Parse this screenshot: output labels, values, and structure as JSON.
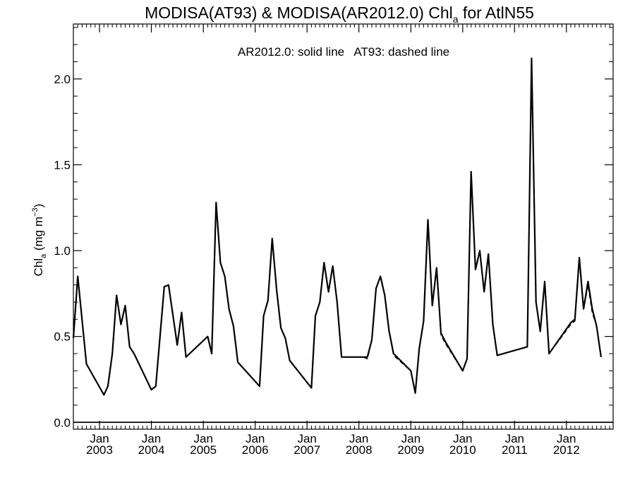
{
  "chart_data": {
    "type": "line",
    "title_main": "MODISA(AT93) & MODISA(AR2012.0)  Chl",
    "title_sub": "a",
    "title_tail": " for AtlN55",
    "ylabel_main": "Chl",
    "ylabel_sub": "a",
    "ylabel_unit": " (mg m",
    "ylabel_sup": "−3",
    "ylabel_close": ")",
    "annotation": "AR2012.0: solid line   AT93: dashed line",
    "ylim": [
      -0.04,
      2.32
    ],
    "xlim": [
      "2002-07-01",
      "2012-11-25"
    ],
    "yticks": [
      {
        "value": 0.0,
        "label": "0.0"
      },
      {
        "value": 0.5,
        "label": "0.5"
      },
      {
        "value": 1.0,
        "label": "1.0"
      },
      {
        "value": 1.5,
        "label": "1.5"
      },
      {
        "value": 2.0,
        "label": "2.0"
      }
    ],
    "xticks": [
      {
        "date": "2003-01-01",
        "month": "Jan",
        "year": "2003"
      },
      {
        "date": "2004-01-01",
        "month": "Jan",
        "year": "2004"
      },
      {
        "date": "2005-01-01",
        "month": "Jan",
        "year": "2005"
      },
      {
        "date": "2006-01-01",
        "month": "Jan",
        "year": "2006"
      },
      {
        "date": "2007-01-01",
        "month": "Jan",
        "year": "2007"
      },
      {
        "date": "2008-01-01",
        "month": "Jan",
        "year": "2008"
      },
      {
        "date": "2009-01-01",
        "month": "Jan",
        "year": "2009"
      },
      {
        "date": "2010-01-01",
        "month": "Jan",
        "year": "2010"
      },
      {
        "date": "2011-01-01",
        "month": "Jan",
        "year": "2011"
      },
      {
        "date": "2012-01-01",
        "month": "Jan",
        "year": "2012"
      }
    ],
    "grid": false,
    "zero_line": true,
    "series": [
      {
        "style": "solid",
        "x": [
          "2002-07-01",
          "2002-08-01",
          "2002-10-01",
          "2003-02-01",
          "2003-03-01",
          "2003-04-01",
          "2003-05-01",
          "2003-06-01",
          "2003-07-01",
          "2003-08-01",
          "2003-09-01",
          "2004-01-01",
          "2004-02-01",
          "2004-04-01",
          "2004-05-01",
          "2004-07-01",
          "2004-08-01",
          "2004-09-01",
          "2005-02-01",
          "2005-03-01",
          "2005-04-01",
          "2005-05-01",
          "2005-06-01",
          "2005-07-01",
          "2005-08-01",
          "2005-09-01",
          "2006-02-01",
          "2006-03-01",
          "2006-04-01",
          "2006-05-01",
          "2006-06-01",
          "2006-07-01",
          "2006-08-01",
          "2006-09-01",
          "2007-02-01",
          "2007-03-01",
          "2007-04-01",
          "2007-05-01",
          "2007-06-01",
          "2007-07-01",
          "2007-08-01",
          "2007-09-01",
          "2008-02-01",
          "2008-03-01",
          "2008-04-01",
          "2008-05-01",
          "2008-06-01",
          "2008-07-01",
          "2008-08-01",
          "2008-09-01",
          "2009-01-01",
          "2009-02-01",
          "2009-03-01",
          "2009-04-01",
          "2009-05-01",
          "2009-06-01",
          "2009-07-01",
          "2009-08-01",
          "2009-09-01",
          "2010-01-01",
          "2010-02-01",
          "2010-03-01",
          "2010-04-01",
          "2010-05-01",
          "2010-06-01",
          "2010-07-01",
          "2010-08-01",
          "2010-09-01",
          "2011-04-01",
          "2011-05-01",
          "2011-06-01",
          "2011-07-01",
          "2011-08-01",
          "2011-09-01",
          "2012-02-01",
          "2012-03-01",
          "2012-04-01",
          "2012-05-01",
          "2012-06-01",
          "2012-07-01",
          "2012-08-01",
          "2012-09-01"
        ],
        "y": [
          0.49,
          0.85,
          0.34,
          0.16,
          0.21,
          0.4,
          0.74,
          0.57,
          0.68,
          0.44,
          0.4,
          0.19,
          0.21,
          0.79,
          0.8,
          0.45,
          0.64,
          0.38,
          0.5,
          0.4,
          1.28,
          0.93,
          0.85,
          0.66,
          0.56,
          0.35,
          0.21,
          0.62,
          0.71,
          1.07,
          0.77,
          0.55,
          0.49,
          0.36,
          0.2,
          0.62,
          0.7,
          0.93,
          0.76,
          0.91,
          0.7,
          0.38,
          0.38,
          0.38,
          0.48,
          0.78,
          0.85,
          0.74,
          0.53,
          0.4,
          0.3,
          0.17,
          0.43,
          0.59,
          1.18,
          0.68,
          0.9,
          0.52,
          0.47,
          0.3,
          0.37,
          1.46,
          0.89,
          1.0,
          0.76,
          0.98,
          0.57,
          0.39,
          0.44,
          2.12,
          0.7,
          0.53,
          0.82,
          0.4,
          0.58,
          0.6,
          0.96,
          0.66,
          0.82,
          0.66,
          0.56,
          0.38
        ]
      },
      {
        "style": "dashed",
        "x": [
          "2002-07-01",
          "2002-08-01",
          "2002-10-01",
          "2003-02-01",
          "2003-03-01",
          "2003-04-01",
          "2003-05-01",
          "2003-06-01",
          "2003-07-01",
          "2003-08-01",
          "2003-09-01",
          "2004-01-01",
          "2004-02-01",
          "2004-04-01",
          "2004-05-01",
          "2004-07-01",
          "2004-08-01",
          "2004-09-01",
          "2005-02-01",
          "2005-03-01",
          "2005-04-01",
          "2005-05-01",
          "2005-06-01",
          "2005-07-01",
          "2005-08-01",
          "2005-09-01",
          "2006-02-01",
          "2006-03-01",
          "2006-04-01",
          "2006-05-01",
          "2006-06-01",
          "2006-07-01",
          "2006-08-01",
          "2006-09-01",
          "2007-02-01",
          "2007-03-01",
          "2007-04-01",
          "2007-05-01",
          "2007-06-01",
          "2007-07-01",
          "2007-08-01",
          "2007-09-01",
          "2008-02-01",
          "2008-03-01",
          "2008-04-01",
          "2008-05-01",
          "2008-06-01",
          "2008-07-01",
          "2008-08-01",
          "2008-09-01",
          "2009-01-01",
          "2009-02-01",
          "2009-03-01",
          "2009-04-01",
          "2009-05-01",
          "2009-06-01",
          "2009-07-01",
          "2009-08-01",
          "2009-09-01",
          "2010-01-01",
          "2010-02-01",
          "2010-03-01",
          "2010-04-01",
          "2010-05-01",
          "2010-06-01",
          "2010-07-01",
          "2010-08-01",
          "2010-09-01",
          "2011-04-01",
          "2011-05-01",
          "2011-06-01",
          "2011-07-01",
          "2011-08-01",
          "2011-09-01",
          "2012-02-01",
          "2012-03-01",
          "2012-04-01",
          "2012-05-01",
          "2012-06-01",
          "2012-07-01",
          "2012-08-01",
          "2012-09-01"
        ],
        "y": [
          0.49,
          0.85,
          0.34,
          0.16,
          0.21,
          0.4,
          0.74,
          0.57,
          0.68,
          0.44,
          0.4,
          0.19,
          0.21,
          0.79,
          0.8,
          0.45,
          0.64,
          0.38,
          0.5,
          0.4,
          1.27,
          0.93,
          0.85,
          0.66,
          0.56,
          0.35,
          0.21,
          0.62,
          0.71,
          1.07,
          0.77,
          0.55,
          0.49,
          0.36,
          0.2,
          0.62,
          0.7,
          0.93,
          0.76,
          0.91,
          0.7,
          0.38,
          0.38,
          0.37,
          0.48,
          0.78,
          0.85,
          0.74,
          0.53,
          0.39,
          0.3,
          0.17,
          0.43,
          0.59,
          1.17,
          0.68,
          0.9,
          0.51,
          0.46,
          0.3,
          0.37,
          1.46,
          0.89,
          1.0,
          0.76,
          0.98,
          0.57,
          0.39,
          0.44,
          2.12,
          0.7,
          0.53,
          0.82,
          0.4,
          0.57,
          0.59,
          0.95,
          0.66,
          0.8,
          0.64,
          0.56,
          0.38
        ]
      }
    ]
  }
}
